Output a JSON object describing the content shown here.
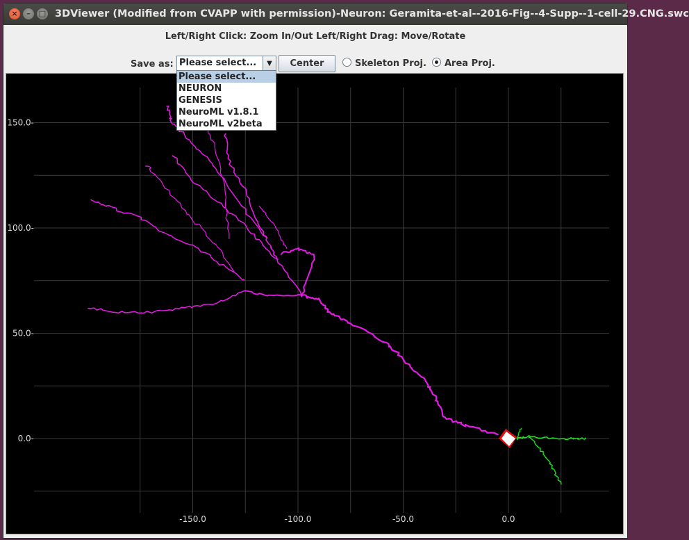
{
  "window": {
    "title": "3DViewer (Modified from CVAPP with permission)-Neuron: Geramita-et-al--2016-Fig--4-Supp--1-cell-29.CNG.swc"
  },
  "instructions": "Left/Right Click: Zoom In/Out Left/Right Drag: Move/Rotate",
  "toolbar": {
    "save_label": "Save as:",
    "select_value": "Please select...",
    "center_label": "Center",
    "radio_skeleton": "Skeleton Proj.",
    "radio_area": "Area Proj.",
    "selected_projection": "area"
  },
  "dropdown": {
    "open": true,
    "options": [
      "Please select...",
      "NEURON",
      "GENESIS",
      "NeuroML v1.8.1",
      "NeuroML v2beta"
    ],
    "highlighted": 0
  },
  "plot": {
    "x_ticks": [
      "-150.0",
      "-100.0",
      "-50.0",
      "0.0"
    ],
    "y_ticks": [
      "150.0-",
      "100.0-",
      "50.0-",
      "0.0-"
    ],
    "colors": {
      "dendrite": "#e619e6",
      "axon": "#19e619",
      "soma": "#ffffff",
      "soma_edge": "#e01010",
      "grid": "#3a3a3a",
      "label": "#dcdcdc"
    }
  }
}
